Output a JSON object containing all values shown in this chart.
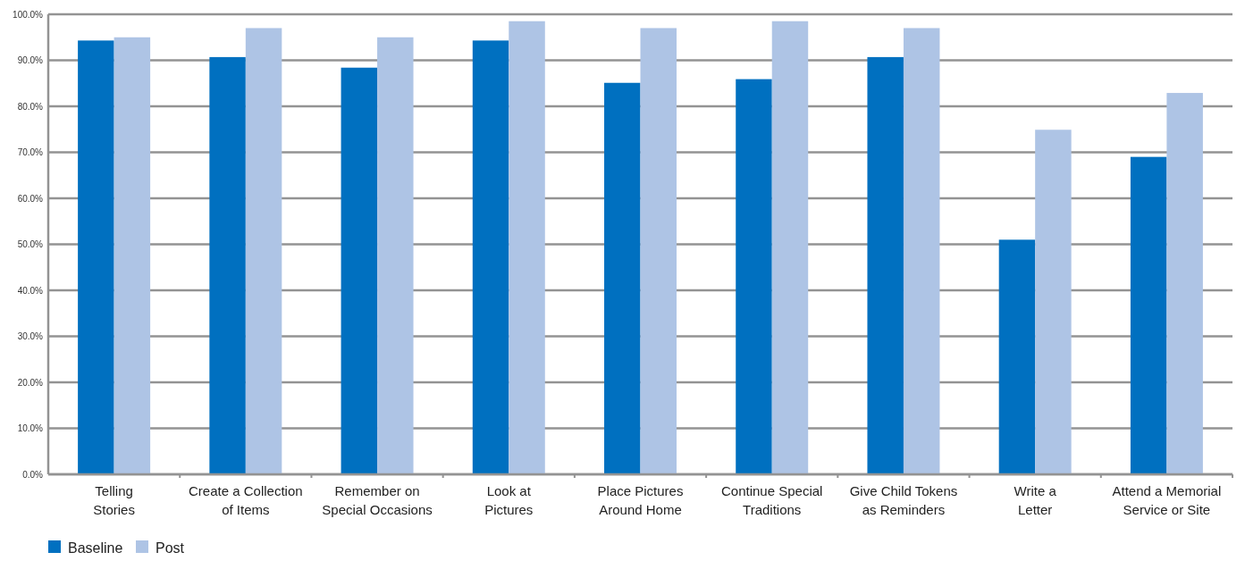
{
  "chart_data": {
    "type": "bar",
    "categories": [
      "Telling Stories",
      "Create a Collection of Items",
      "Remember on Special Occasions",
      "Look at Pictures",
      "Place Pictures Around Home",
      "Continue Special Traditions",
      "Give Child Tokens as Reminders",
      "Write a Letter",
      "Attend a Memorial Service or Site"
    ],
    "series": [
      {
        "name": "Baseline",
        "color": "#0070c0",
        "values": [
          94.3,
          90.7,
          88.4,
          94.3,
          85.1,
          85.9,
          90.7,
          51.0,
          69.0
        ]
      },
      {
        "name": "Post",
        "color": "#aec4e5",
        "values": [
          95.0,
          97.0,
          95.0,
          98.5,
          97.0,
          98.5,
          97.0,
          74.9,
          82.9
        ]
      }
    ],
    "ylim": [
      0,
      100
    ],
    "yticks": [
      {
        "value": 0,
        "label": "0.0%"
      },
      {
        "value": 10,
        "label": "10.0%"
      },
      {
        "value": 20,
        "label": "20.0%"
      },
      {
        "value": 30,
        "label": "30.0%"
      },
      {
        "value": 40,
        "label": "40.0%"
      },
      {
        "value": 50,
        "label": "50.0%"
      },
      {
        "value": 60,
        "label": "60.0%"
      },
      {
        "value": 70,
        "label": "70.0%"
      },
      {
        "value": 80,
        "label": "80.0%"
      },
      {
        "value": 90,
        "label": "90.0%"
      },
      {
        "value": 100,
        "label": "100.0%"
      }
    ],
    "grid": "y",
    "legend": "bottom left"
  }
}
